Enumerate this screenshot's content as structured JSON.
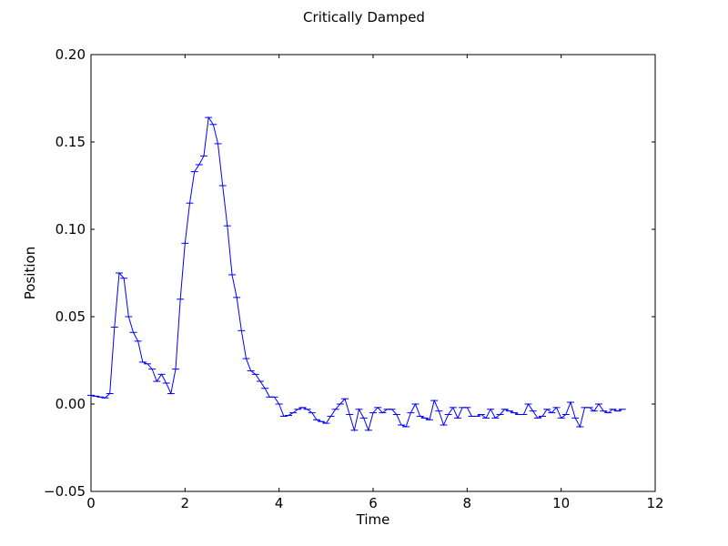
{
  "chart_data": {
    "type": "line",
    "title": "Critically Damped",
    "xlabel": "Time",
    "ylabel": "Position",
    "xlim": [
      0,
      12
    ],
    "ylim": [
      -0.05,
      0.2
    ],
    "xticks": [
      0,
      2,
      4,
      6,
      8,
      10,
      12
    ],
    "xtick_labels": [
      "0",
      "2",
      "4",
      "6",
      "8",
      "10",
      "12"
    ],
    "yticks": [
      -0.05,
      0.0,
      0.05,
      0.1,
      0.15,
      0.2
    ],
    "ytick_labels": [
      "−0.05",
      "0.00",
      "0.05",
      "0.10",
      "0.15",
      "0.20"
    ],
    "grid": false,
    "marker": "hline",
    "series": [
      {
        "color": "#0000ff",
        "x": [
          0.0,
          0.1,
          0.2,
          0.3,
          0.4,
          0.5,
          0.6,
          0.7,
          0.8,
          0.9,
          1.0,
          1.1,
          1.2,
          1.3,
          1.4,
          1.5,
          1.6,
          1.7,
          1.8,
          1.9,
          2.0,
          2.1,
          2.2,
          2.3,
          2.4,
          2.5,
          2.6,
          2.7,
          2.8,
          2.9,
          3.0,
          3.1,
          3.2,
          3.3,
          3.4,
          3.5,
          3.6,
          3.7,
          3.8,
          3.9,
          4.0,
          4.1,
          4.2,
          4.3,
          4.4,
          4.5,
          4.6,
          4.7,
          4.8,
          4.9,
          5.0,
          5.1,
          5.2,
          5.3,
          5.4,
          5.5,
          5.6,
          5.7,
          5.8,
          5.9,
          6.0,
          6.1,
          6.2,
          6.3,
          6.4,
          6.5,
          6.6,
          6.7,
          6.8,
          6.9,
          7.0,
          7.1,
          7.2,
          7.3,
          7.4,
          7.5,
          7.6,
          7.7,
          7.8,
          7.9,
          8.0,
          8.1,
          8.2,
          8.3,
          8.4,
          8.5,
          8.6,
          8.7,
          8.8,
          8.9,
          9.0,
          9.1,
          9.2,
          9.3,
          9.4,
          9.5,
          9.6,
          9.7,
          9.8,
          9.9,
          10.0,
          10.1,
          10.2,
          10.3,
          10.4,
          10.5,
          10.6,
          10.7,
          10.8,
          10.9,
          11.0,
          11.1,
          11.2,
          11.3
        ],
        "y": [
          0.005,
          0.0045,
          0.004,
          0.0035,
          0.006,
          0.044,
          0.075,
          0.072,
          0.05,
          0.041,
          0.036,
          0.024,
          0.023,
          0.02,
          0.013,
          0.017,
          0.012,
          0.006,
          0.02,
          0.06,
          0.092,
          0.115,
          0.133,
          0.137,
          0.142,
          0.164,
          0.16,
          0.149,
          0.125,
          0.102,
          0.074,
          0.061,
          0.042,
          0.026,
          0.019,
          0.017,
          0.013,
          0.009,
          0.004,
          0.004,
          0.0,
          -0.007,
          -0.0065,
          -0.005,
          -0.003,
          -0.002,
          -0.003,
          -0.005,
          -0.009,
          -0.01,
          -0.011,
          -0.007,
          -0.003,
          0.0,
          0.003,
          -0.006,
          -0.015,
          -0.003,
          -0.008,
          -0.015,
          -0.005,
          -0.002,
          -0.005,
          -0.003,
          -0.003,
          -0.006,
          -0.012,
          -0.013,
          -0.005,
          0.0,
          -0.007,
          -0.008,
          -0.009,
          0.002,
          -0.004,
          -0.012,
          -0.006,
          -0.002,
          -0.008,
          -0.002,
          -0.002,
          -0.007,
          -0.007,
          -0.006,
          -0.008,
          -0.003,
          -0.008,
          -0.006,
          -0.003,
          -0.004,
          -0.005,
          -0.006,
          -0.006,
          0.0,
          -0.004,
          -0.008,
          -0.007,
          -0.003,
          -0.005,
          -0.002,
          -0.008,
          -0.006,
          0.001,
          -0.008,
          -0.013,
          -0.002,
          -0.002,
          -0.004,
          0.0,
          -0.004,
          -0.005,
          -0.003,
          -0.004,
          -0.003
        ]
      }
    ]
  }
}
